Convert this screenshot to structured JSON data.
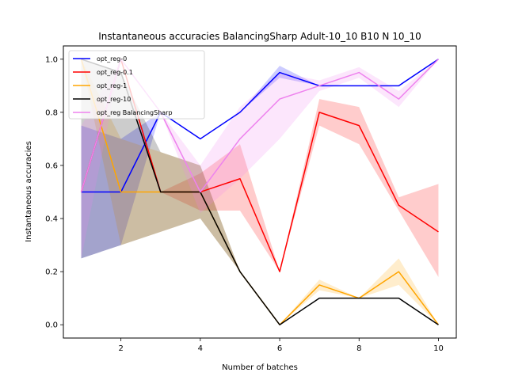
{
  "chart_data": {
    "type": "line",
    "title": "Instantaneous accuracies BalancingSharp Adult-10_10 B10 N 10_10",
    "xlabel": "Number of batches",
    "ylabel": "Instantaneous accuracies",
    "xlim": [
      0.55,
      10.45
    ],
    "ylim": [
      -0.05,
      1.05
    ],
    "xticks": [
      2,
      4,
      6,
      8,
      10
    ],
    "yticks": [
      0.0,
      0.2,
      0.4,
      0.6,
      0.8,
      1.0
    ],
    "ytick_labels": [
      "0.0",
      "0.2",
      "0.4",
      "0.6",
      "0.8",
      "1.0"
    ],
    "grid": false,
    "legend_position": "upper-left",
    "x": [
      1,
      2,
      3,
      4,
      5,
      6,
      7,
      8,
      9,
      10
    ],
    "series": [
      {
        "name": "opt_reg-0",
        "color": "#0000ff",
        "values": [
          0.5,
          0.5,
          0.8,
          0.7,
          0.8,
          0.95,
          0.9,
          0.9,
          0.9,
          1.0
        ],
        "lower": [
          0.25,
          0.3,
          0.8,
          0.7,
          0.8,
          0.93,
          0.9,
          0.9,
          0.9,
          1.0
        ],
        "upper": [
          0.75,
          0.7,
          0.8,
          0.7,
          0.8,
          0.975,
          0.9,
          0.9,
          0.9,
          1.0
        ]
      },
      {
        "name": "opt_reg-0.1",
        "color": "#ff0000",
        "values": [
          0.5,
          1.0,
          0.5,
          0.5,
          0.55,
          0.2,
          0.8,
          0.75,
          0.45,
          0.35
        ],
        "lower": [
          0.5,
          1.0,
          0.5,
          0.43,
          0.43,
          0.2,
          0.75,
          0.68,
          0.43,
          0.18
        ],
        "upper": [
          0.5,
          1.0,
          0.5,
          0.57,
          0.68,
          0.2,
          0.85,
          0.82,
          0.48,
          0.53
        ]
      },
      {
        "name": "opt_reg-1",
        "color": "#ffa500",
        "values": [
          1.0,
          0.5,
          0.5,
          0.5,
          0.2,
          0.0,
          0.15,
          0.1,
          0.2,
          0.0
        ],
        "lower": [
          1.0,
          0.3,
          0.35,
          0.4,
          0.2,
          0.0,
          0.13,
          0.1,
          0.15,
          0.0
        ],
        "upper": [
          1.0,
          0.7,
          0.65,
          0.6,
          0.2,
          0.0,
          0.17,
          0.1,
          0.25,
          0.0
        ]
      },
      {
        "name": "opt_reg-10",
        "color": "#000000",
        "values": [
          1.0,
          0.95,
          0.5,
          0.5,
          0.2,
          0.0,
          0.1,
          0.1,
          0.1,
          0.0
        ],
        "lower": [
          0.25,
          0.3,
          0.35,
          0.4,
          0.2,
          0.0,
          0.1,
          0.1,
          0.1,
          0.0
        ],
        "upper": [
          1.0,
          0.95,
          0.65,
          0.6,
          0.2,
          0.0,
          0.1,
          0.1,
          0.1,
          0.0
        ]
      },
      {
        "name": "opt_reg BalancingSharp",
        "color": "#ee82ee",
        "values": [
          0.5,
          1.0,
          0.8,
          0.5,
          0.7,
          0.85,
          0.9,
          0.95,
          0.85,
          1.0
        ],
        "lower": [
          0.25,
          1.0,
          0.8,
          0.42,
          0.55,
          0.7,
          0.88,
          0.93,
          0.82,
          1.0
        ],
        "upper": [
          0.75,
          1.0,
          0.8,
          0.6,
          0.82,
          0.95,
          0.92,
          0.97,
          0.88,
          1.0
        ]
      }
    ]
  }
}
